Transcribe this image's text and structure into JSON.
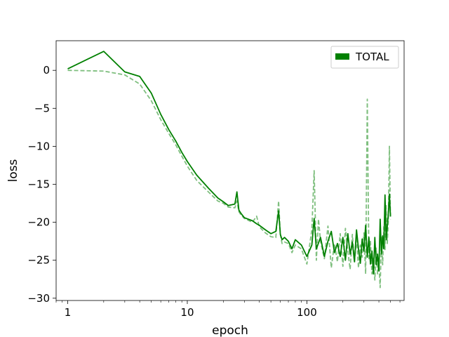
{
  "chart_data": {
    "type": "line",
    "title": "",
    "xlabel": "epoch",
    "ylabel": "loss",
    "xscale": "log",
    "xlim": [
      0.8,
      650
    ],
    "ylim": [
      -30.3,
      3.9
    ],
    "x_ticks": [
      1,
      10,
      100
    ],
    "x_tick_labels": [
      "1",
      "10",
      "100"
    ],
    "y_ticks": [
      0,
      -5,
      -10,
      -15,
      -20,
      -25,
      -30
    ],
    "y_tick_labels": [
      "0",
      "−5",
      "−10",
      "−15",
      "−20",
      "−25",
      "−30"
    ],
    "grid": false,
    "legend": {
      "position": "top-right",
      "entries": [
        {
          "label": "TOTAL",
          "color": "#008000"
        }
      ]
    },
    "series": [
      {
        "name": "TOTAL",
        "style": "solid",
        "color": "#008000",
        "opacity": 1.0,
        "x": [
          1,
          2,
          3,
          4,
          5,
          6,
          7,
          8,
          9,
          10,
          12,
          15,
          18,
          20,
          22,
          25,
          26,
          27,
          28,
          30,
          35,
          38,
          40,
          45,
          50,
          55,
          58,
          60,
          62,
          65,
          70,
          75,
          80,
          90,
          100,
          110,
          115,
          120,
          130,
          140,
          150,
          160,
          170,
          180,
          190,
          200,
          210,
          220,
          230,
          240,
          250,
          260,
          270,
          280,
          290,
          300,
          310,
          320,
          330,
          340,
          350,
          360,
          370,
          380,
          390,
          400,
          410,
          420,
          430,
          440,
          450,
          460,
          470,
          480,
          490,
          500
        ],
        "y": [
          0.2,
          2.5,
          -0.2,
          -0.8,
          -3.0,
          -5.8,
          -7.8,
          -9.3,
          -10.8,
          -12.0,
          -13.8,
          -15.5,
          -16.8,
          -17.3,
          -17.8,
          -17.6,
          -16.0,
          -18.4,
          -18.8,
          -19.4,
          -19.8,
          -20.2,
          -20.4,
          -21.0,
          -21.5,
          -21.2,
          -18.5,
          -21.6,
          -22.3,
          -22.0,
          -22.5,
          -23.5,
          -22.3,
          -23.0,
          -24.5,
          -23.0,
          -19.5,
          -23.5,
          -22.0,
          -24.5,
          -22.5,
          -21.2,
          -24.0,
          -22.8,
          -24.5,
          -22.0,
          -25.0,
          -21.5,
          -24.2,
          -22.6,
          -25.2,
          -21.0,
          -23.5,
          -25.4,
          -22.2,
          -23.8,
          -20.4,
          -24.6,
          -22.0,
          -25.5,
          -23.8,
          -26.8,
          -22.0,
          -25.6,
          -24.2,
          -26.4,
          -19.6,
          -24.2,
          -21.8,
          -23.5,
          -16.4,
          -22.3,
          -20.6,
          -18.8,
          -16.3,
          -19.2
        ]
      },
      {
        "name": "",
        "style": "dashed",
        "color": "#008000",
        "opacity": 0.5,
        "x": [
          1,
          2,
          3,
          4,
          5,
          6,
          7,
          8,
          9,
          10,
          12,
          15,
          18,
          20,
          22,
          25,
          26,
          27,
          28,
          30,
          35,
          38,
          40,
          45,
          50,
          55,
          58,
          60,
          62,
          65,
          70,
          75,
          80,
          90,
          100,
          110,
          115,
          120,
          125,
          130,
          140,
          150,
          160,
          170,
          180,
          190,
          200,
          210,
          220,
          230,
          240,
          250,
          260,
          270,
          280,
          290,
          300,
          310,
          320,
          330,
          340,
          350,
          360,
          370,
          380,
          390,
          400,
          410,
          420,
          430,
          440,
          450,
          460,
          470,
          480,
          490,
          500
        ],
        "y": [
          0.0,
          -0.1,
          -0.6,
          -1.8,
          -4.0,
          -6.5,
          -8.3,
          -9.8,
          -11.3,
          -12.6,
          -14.5,
          -16.0,
          -17.2,
          -17.5,
          -18.0,
          -18.1,
          -17.2,
          -18.6,
          -19.0,
          -19.5,
          -20.0,
          -19.2,
          -20.6,
          -21.4,
          -21.9,
          -22.0,
          -17.2,
          -21.6,
          -22.8,
          -22.6,
          -22.8,
          -24.0,
          -23.0,
          -23.5,
          -25.5,
          -21.0,
          -13.2,
          -25.0,
          -19.6,
          -22.5,
          -24.8,
          -20.5,
          -26.0,
          -22.8,
          -25.2,
          -21.5,
          -25.8,
          -20.8,
          -23.8,
          -26.2,
          -21.6,
          -25.3,
          -22.0,
          -26.0,
          -23.0,
          -24.6,
          -21.4,
          -26.8,
          -3.8,
          -25.0,
          -22.4,
          -26.8,
          -24.6,
          -27.6,
          -23.4,
          -26.8,
          -25.4,
          -28.6,
          -22.0,
          -25.6,
          -20.6,
          -23.6,
          -17.8,
          -22.8,
          -19.6,
          -10.0,
          -19.6
        ]
      }
    ]
  }
}
